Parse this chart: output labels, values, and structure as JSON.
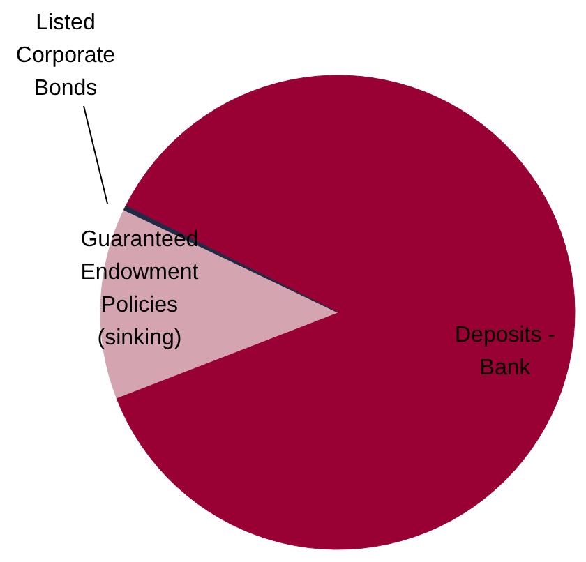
{
  "chart_data": {
    "type": "pie",
    "categories": [
      "Deposits - Bank",
      "Guaranteed Endowment Policies (sinking)",
      "Listed Corporate Bonds"
    ],
    "values": [
      86.7,
      13.0,
      0.3
    ],
    "colors": [
      "#990033",
      "#d4a5b0",
      "#1f2a44"
    ]
  }
}
